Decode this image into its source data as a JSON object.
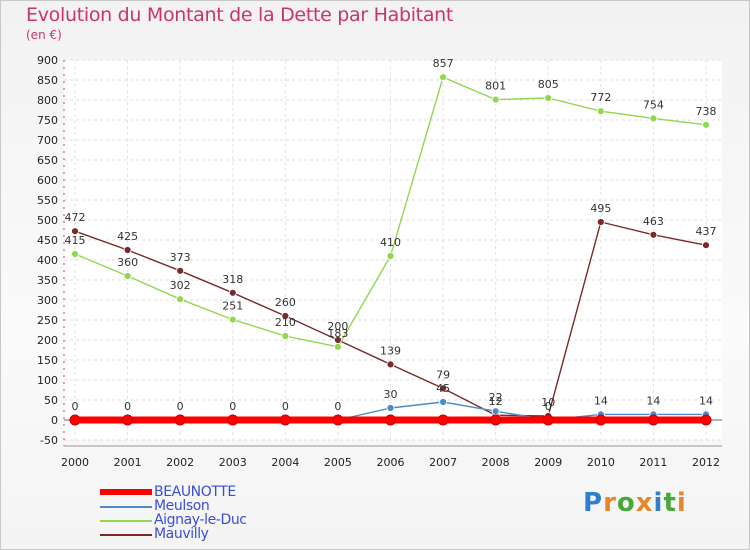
{
  "header": {
    "title": "Evolution du Montant de la Dette par Habitant",
    "unit": "(en €)"
  },
  "logo": {
    "text": "Proxiti"
  },
  "chart_data": {
    "type": "line",
    "title": "Evolution du Montant de la Dette par Habitant",
    "ylabel": "(en €)",
    "ylim": [
      -50,
      900
    ],
    "yticks": [
      -50,
      0,
      50,
      100,
      150,
      200,
      250,
      300,
      350,
      400,
      450,
      500,
      550,
      600,
      650,
      700,
      750,
      800,
      850,
      900
    ],
    "x": [
      "2000",
      "2001",
      "2002",
      "2003",
      "2004",
      "2005",
      "2006",
      "2007",
      "2008",
      "2009",
      "2010",
      "2011",
      "2012"
    ],
    "series": [
      {
        "name": "BEAUNOTTE",
        "color": "#ff0000",
        "values": [
          0,
          0,
          0,
          0,
          0,
          0,
          0,
          0,
          0,
          0,
          0,
          0,
          0
        ],
        "labels": []
      },
      {
        "name": "Meulson",
        "color": "#4a8cc8",
        "values": [
          0,
          0,
          0,
          0,
          0,
          0,
          30,
          45,
          22,
          0,
          14,
          14,
          14
        ],
        "labels": [
          "0",
          "0",
          "0",
          "0",
          "0",
          "0",
          "30",
          "45",
          "22",
          "0",
          "14",
          "14",
          "14"
        ]
      },
      {
        "name": "Aignay-le-Duc",
        "color": "#8fd84f",
        "values": [
          415,
          360,
          302,
          251,
          210,
          183,
          410,
          857,
          801,
          805,
          772,
          754,
          738
        ],
        "labels": [
          "415",
          "360",
          "302",
          "251",
          "210",
          "183",
          "410",
          "857",
          "801",
          "805",
          "772",
          "754",
          "738"
        ]
      },
      {
        "name": "Mauvilly",
        "color": "#7a2a2a",
        "values": [
          472,
          425,
          373,
          318,
          260,
          200,
          139,
          79,
          12,
          10,
          495,
          463,
          437
        ],
        "labels": [
          "472",
          "425",
          "373",
          "318",
          "260",
          "200",
          "139",
          "79",
          "12",
          "10",
          "495",
          "463",
          "437"
        ]
      }
    ]
  }
}
